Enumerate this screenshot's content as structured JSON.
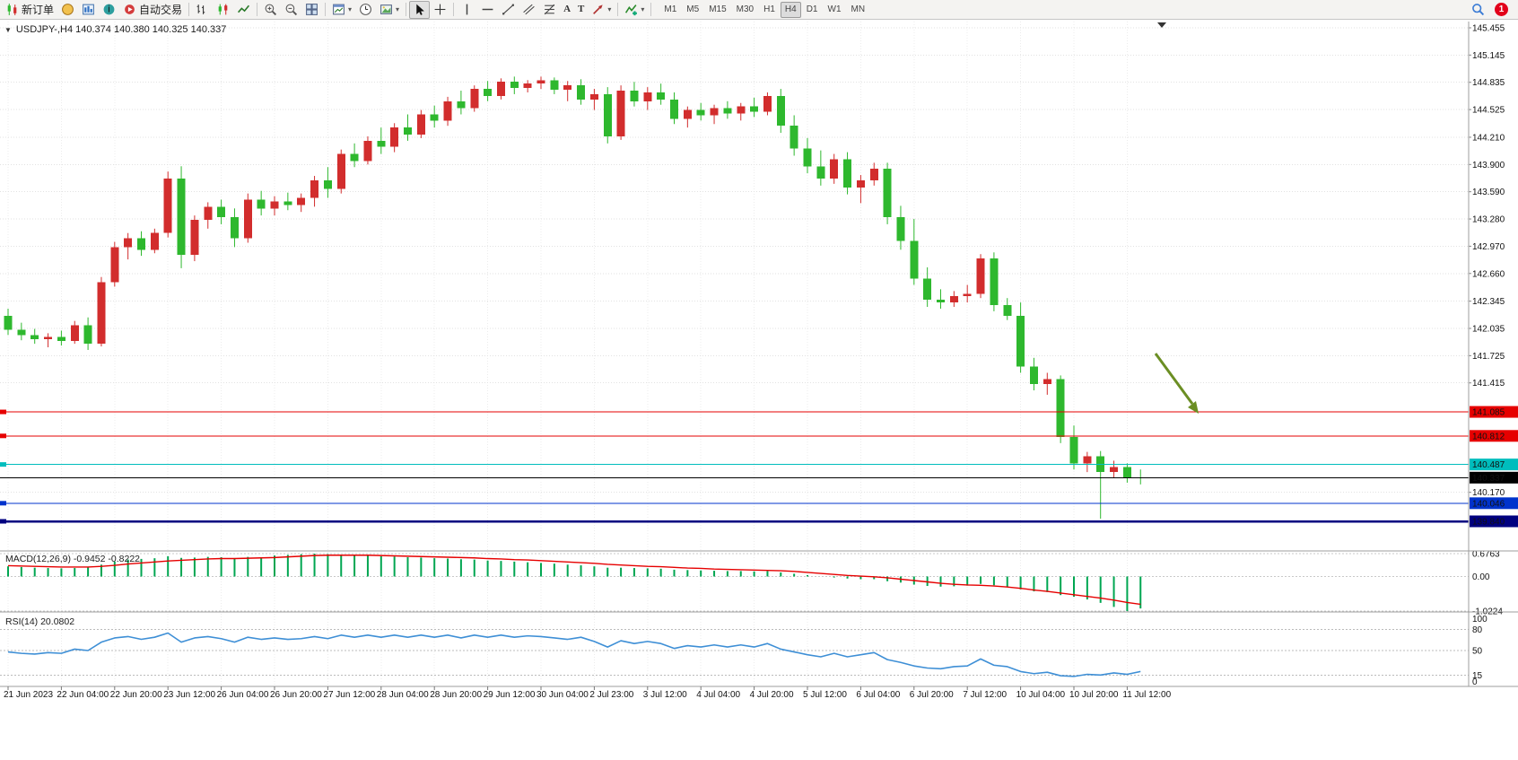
{
  "toolbar": {
    "new_order": "新订单",
    "autotrade": "自动交易",
    "timeframes": [
      "M1",
      "M5",
      "M15",
      "M30",
      "H1",
      "H4",
      "D1",
      "W1",
      "MN"
    ],
    "active_timeframe": "H4",
    "notification_count": "1"
  },
  "chart_header": {
    "title": "USDJPY-,H4 140.374 140.380 140.325 140.337"
  },
  "indicators": {
    "macd_label": "MACD(12,26,9) -0.9452 -0.8222",
    "rsi_label": "RSI(14) 20.0802"
  },
  "chart_data": {
    "type": "candlestick",
    "symbol": "USDJPY-",
    "period": "H4",
    "last_ohlc": [
      140.374,
      140.38,
      140.325,
      140.337
    ],
    "price_axis_ticks": [
      145.455,
      145.145,
      144.835,
      144.525,
      144.21,
      143.9,
      143.59,
      143.28,
      142.97,
      142.66,
      142.345,
      142.035,
      141.725,
      141.415,
      140.17
    ],
    "hlines": [
      {
        "price": 141.085,
        "label": "141.085",
        "color": "#e60000",
        "width": 1
      },
      {
        "price": 140.812,
        "label": "140.812",
        "color": "#e60000",
        "width": 1
      },
      {
        "price": 140.487,
        "label": "140.487",
        "color": "#00bdbd",
        "width": 1
      },
      {
        "price": 140.046,
        "label": "140.046",
        "color": "#0033cc",
        "width": 1
      },
      {
        "price": 139.84,
        "label": "139.840",
        "color": "#000080",
        "width": 2.5
      }
    ],
    "current_price": {
      "price": 140.337,
      "label": "140.337",
      "color": "#000000"
    },
    "colors": {
      "bull": "#d22d2d",
      "bear": "#2eb82e",
      "grid": "#e2e2e2"
    },
    "annotation_arrow": {
      "color": "#6b8e23"
    },
    "time_label_step": 4,
    "time_labels": [
      "21 Jun 2023",
      "22 Jun 04:00",
      "22 Jun 20:00",
      "23 Jun 12:00",
      "26 Jun 04:00",
      "26 Jun 20:00",
      "27 Jun 12:00",
      "28 Jun 04:00",
      "28 Jun 20:00",
      "29 Jun 12:00",
      "30 Jun 04:00",
      "2 Jul 23:00",
      "3 Jul 12:00",
      "4 Jul 04:00",
      "4 Jul 20:00",
      "5 Jul 12:00",
      "6 Jul 04:00",
      "6 Jul 20:00",
      "7 Jul 12:00",
      "10 Jul 04:00",
      "10 Jul 20:00",
      "11 Jul 12:00"
    ],
    "candles": [
      [
        142.18,
        142.26,
        141.96,
        142.02
      ],
      [
        142.02,
        142.1,
        141.9,
        141.96
      ],
      [
        141.96,
        142.03,
        141.86,
        141.91
      ],
      [
        141.91,
        141.98,
        141.82,
        141.94
      ],
      [
        141.94,
        142.01,
        141.84,
        141.89
      ],
      [
        141.89,
        142.12,
        141.86,
        142.07
      ],
      [
        142.07,
        142.16,
        141.79,
        141.86
      ],
      [
        141.86,
        142.62,
        141.83,
        142.56
      ],
      [
        142.56,
        143.02,
        142.51,
        142.96
      ],
      [
        142.96,
        143.12,
        142.82,
        143.06
      ],
      [
        143.06,
        143.14,
        142.86,
        142.93
      ],
      [
        142.93,
        143.17,
        142.89,
        143.12
      ],
      [
        143.12,
        143.82,
        143.07,
        143.74
      ],
      [
        143.74,
        143.88,
        142.72,
        142.87
      ],
      [
        142.87,
        143.32,
        142.8,
        143.27
      ],
      [
        143.27,
        143.47,
        143.17,
        143.42
      ],
      [
        143.42,
        143.5,
        143.22,
        143.3
      ],
      [
        143.3,
        143.4,
        142.96,
        143.06
      ],
      [
        143.06,
        143.57,
        143.01,
        143.5
      ],
      [
        143.5,
        143.6,
        143.32,
        143.4
      ],
      [
        143.4,
        143.54,
        143.32,
        143.48
      ],
      [
        143.48,
        143.58,
        143.38,
        143.44
      ],
      [
        143.44,
        143.57,
        143.36,
        143.52
      ],
      [
        143.52,
        143.77,
        143.42,
        143.72
      ],
      [
        143.72,
        143.87,
        143.52,
        143.62
      ],
      [
        143.62,
        144.07,
        143.57,
        144.02
      ],
      [
        144.02,
        144.14,
        143.87,
        143.94
      ],
      [
        143.94,
        144.22,
        143.9,
        144.17
      ],
      [
        144.17,
        144.32,
        144.02,
        144.1
      ],
      [
        144.1,
        144.37,
        144.04,
        144.32
      ],
      [
        144.32,
        144.47,
        144.17,
        144.24
      ],
      [
        144.24,
        144.52,
        144.2,
        144.47
      ],
      [
        144.47,
        144.57,
        144.32,
        144.4
      ],
      [
        144.4,
        144.67,
        144.34,
        144.62
      ],
      [
        144.62,
        144.74,
        144.47,
        144.54
      ],
      [
        144.54,
        144.8,
        144.5,
        144.76
      ],
      [
        144.76,
        144.85,
        144.62,
        144.68
      ],
      [
        144.68,
        144.88,
        144.64,
        144.84
      ],
      [
        144.84,
        144.9,
        144.7,
        144.77
      ],
      [
        144.77,
        144.86,
        144.72,
        144.82
      ],
      [
        144.82,
        144.9,
        144.76,
        144.86
      ],
      [
        144.86,
        144.89,
        144.7,
        144.75
      ],
      [
        144.75,
        144.85,
        144.62,
        144.8
      ],
      [
        144.8,
        144.87,
        144.58,
        144.64
      ],
      [
        144.64,
        144.76,
        144.52,
        144.7
      ],
      [
        144.7,
        144.78,
        144.14,
        144.22
      ],
      [
        144.22,
        144.8,
        144.18,
        144.74
      ],
      [
        144.74,
        144.84,
        144.56,
        144.62
      ],
      [
        144.62,
        144.78,
        144.52,
        144.72
      ],
      [
        144.72,
        144.82,
        144.58,
        144.64
      ],
      [
        144.64,
        144.72,
        144.36,
        144.42
      ],
      [
        144.42,
        144.56,
        144.32,
        144.52
      ],
      [
        144.52,
        144.6,
        144.4,
        144.46
      ],
      [
        144.46,
        144.58,
        144.36,
        144.54
      ],
      [
        144.54,
        144.62,
        144.42,
        144.48
      ],
      [
        144.48,
        144.6,
        144.4,
        144.56
      ],
      [
        144.56,
        144.66,
        144.44,
        144.5
      ],
      [
        144.5,
        144.72,
        144.46,
        144.68
      ],
      [
        144.68,
        144.76,
        144.26,
        144.34
      ],
      [
        144.34,
        144.46,
        144.0,
        144.08
      ],
      [
        144.08,
        144.2,
        143.8,
        143.88
      ],
      [
        143.88,
        144.06,
        143.66,
        143.74
      ],
      [
        143.74,
        144.02,
        143.68,
        143.96
      ],
      [
        143.96,
        144.04,
        143.56,
        143.64
      ],
      [
        143.64,
        143.78,
        143.46,
        143.72
      ],
      [
        143.72,
        143.92,
        143.66,
        143.85
      ],
      [
        143.85,
        143.92,
        143.22,
        143.3
      ],
      [
        143.3,
        143.43,
        142.93,
        143.03
      ],
      [
        143.03,
        143.28,
        142.53,
        142.6
      ],
      [
        142.6,
        142.73,
        142.28,
        142.36
      ],
      [
        142.36,
        142.48,
        142.26,
        142.33
      ],
      [
        142.33,
        142.46,
        142.28,
        142.4
      ],
      [
        142.4,
        142.53,
        142.33,
        142.43
      ],
      [
        142.43,
        142.88,
        142.38,
        142.83
      ],
      [
        142.83,
        142.9,
        142.23,
        142.3
      ],
      [
        142.3,
        142.38,
        142.13,
        142.18
      ],
      [
        142.18,
        142.33,
        141.53,
        141.6
      ],
      [
        141.6,
        141.7,
        141.33,
        141.4
      ],
      [
        141.4,
        141.53,
        141.28,
        141.46
      ],
      [
        141.46,
        141.5,
        140.73,
        140.8
      ],
      [
        140.8,
        140.93,
        140.43,
        140.5
      ],
      [
        140.5,
        140.63,
        140.4,
        140.58
      ],
      [
        140.58,
        140.64,
        139.87,
        140.4
      ],
      [
        140.4,
        140.53,
        140.33,
        140.46
      ],
      [
        140.46,
        140.5,
        140.28,
        140.34
      ],
      [
        140.34,
        140.43,
        140.26,
        140.337
      ]
    ],
    "macd": {
      "axis_labels": [
        "0.6763",
        "0.00",
        "-1.0224"
      ],
      "max": 0.6763,
      "min": -1.0224,
      "hist_color": "#00a651",
      "signal_color": "#e60000",
      "hist": [
        0.3,
        0.28,
        0.26,
        0.25,
        0.24,
        0.25,
        0.27,
        0.35,
        0.44,
        0.5,
        0.52,
        0.54,
        0.6,
        0.55,
        0.56,
        0.58,
        0.57,
        0.54,
        0.58,
        0.56,
        0.62,
        0.64,
        0.66,
        0.6763,
        0.66,
        0.65,
        0.63,
        0.62,
        0.6,
        0.59,
        0.57,
        0.56,
        0.54,
        0.53,
        0.51,
        0.5,
        0.47,
        0.46,
        0.44,
        0.42,
        0.4,
        0.38,
        0.35,
        0.33,
        0.3,
        0.26,
        0.26,
        0.25,
        0.24,
        0.23,
        0.2,
        0.19,
        0.18,
        0.17,
        0.16,
        0.16,
        0.15,
        0.16,
        0.12,
        0.08,
        0.04,
        0.0,
        -0.03,
        -0.06,
        -0.08,
        -0.08,
        -0.14,
        -0.18,
        -0.24,
        -0.28,
        -0.3,
        -0.29,
        -0.27,
        -0.22,
        -0.26,
        -0.3,
        -0.38,
        -0.44,
        -0.46,
        -0.55,
        -0.6,
        -0.68,
        -0.78,
        -0.9,
        -1.0224,
        -0.9452
      ],
      "signal": [
        0.32,
        0.31,
        0.3,
        0.29,
        0.28,
        0.28,
        0.28,
        0.3,
        0.33,
        0.37,
        0.4,
        0.43,
        0.46,
        0.48,
        0.5,
        0.52,
        0.53,
        0.53,
        0.54,
        0.55,
        0.56,
        0.58,
        0.6,
        0.62,
        0.63,
        0.63,
        0.63,
        0.63,
        0.62,
        0.61,
        0.6,
        0.59,
        0.58,
        0.57,
        0.56,
        0.55,
        0.53,
        0.52,
        0.5,
        0.49,
        0.47,
        0.45,
        0.43,
        0.41,
        0.39,
        0.36,
        0.34,
        0.32,
        0.3,
        0.29,
        0.27,
        0.25,
        0.24,
        0.22,
        0.21,
        0.2,
        0.19,
        0.18,
        0.17,
        0.15,
        0.12,
        0.09,
        0.06,
        0.03,
        0.01,
        -0.01,
        -0.04,
        -0.08,
        -0.12,
        -0.16,
        -0.2,
        -0.23,
        -0.25,
        -0.26,
        -0.28,
        -0.31,
        -0.35,
        -0.4,
        -0.44,
        -0.49,
        -0.54,
        -0.59,
        -0.64,
        -0.7,
        -0.77,
        -0.8222
      ]
    },
    "rsi": {
      "axis_labels": [
        "100",
        "80",
        "50",
        "15",
        "0"
      ],
      "levels": [
        80,
        50,
        15
      ],
      "color": "#3e8fd6",
      "values": [
        48,
        46,
        45,
        47,
        46,
        52,
        50,
        62,
        68,
        70,
        66,
        69,
        75,
        62,
        68,
        70,
        67,
        62,
        69,
        66,
        68,
        66,
        67,
        70,
        67,
        72,
        69,
        72,
        69,
        72,
        69,
        72,
        69,
        72,
        68,
        72,
        69,
        72,
        69,
        71,
        70,
        68,
        66,
        69,
        63,
        55,
        64,
        60,
        63,
        60,
        53,
        57,
        55,
        58,
        55,
        58,
        55,
        60,
        52,
        48,
        44,
        41,
        46,
        41,
        44,
        47,
        37,
        33,
        28,
        25,
        24,
        27,
        28,
        38,
        29,
        27,
        20,
        17,
        19,
        14,
        13,
        16,
        15,
        18,
        16,
        20.08
      ]
    }
  }
}
